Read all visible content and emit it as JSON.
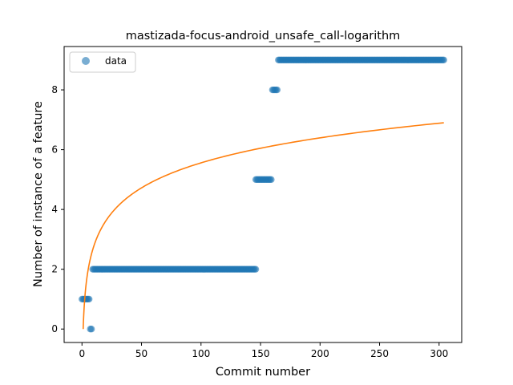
{
  "chart_data": {
    "type": "scatter",
    "title": "mastizada-focus-android_unsafe_call-logarithm",
    "xlabel": "Commit number",
    "ylabel": "Number of instance of a feature",
    "xlim": [
      -15,
      319
    ],
    "ylim": [
      -0.45,
      9.45
    ],
    "xticks": [
      0,
      50,
      100,
      150,
      200,
      250,
      300
    ],
    "yticks": [
      0,
      2,
      4,
      6,
      8
    ],
    "grid": false,
    "legend": {
      "placement": "upper-left",
      "entries": [
        "data"
      ]
    },
    "colors": {
      "data": "#1f77b4",
      "fit": "#ff7f0e"
    },
    "series": [
      {
        "name": "data",
        "kind": "scatter",
        "segments": [
          {
            "x_start": 0,
            "x_end": 6,
            "y": 1
          },
          {
            "x_start": 7,
            "x_end": 8,
            "y": 0
          },
          {
            "x_start": 9,
            "x_end": 146,
            "y": 2
          },
          {
            "x_start": 146,
            "x_end": 159,
            "y": 5
          },
          {
            "x_start": 160,
            "x_end": 164,
            "y": 8
          },
          {
            "x_start": 165,
            "x_end": 304,
            "y": 9
          }
        ]
      },
      {
        "kind": "line",
        "model": "a + b * ln(x)",
        "a": 0.0,
        "b": 1.207,
        "x_start": 1,
        "x_end": 304
      }
    ]
  }
}
